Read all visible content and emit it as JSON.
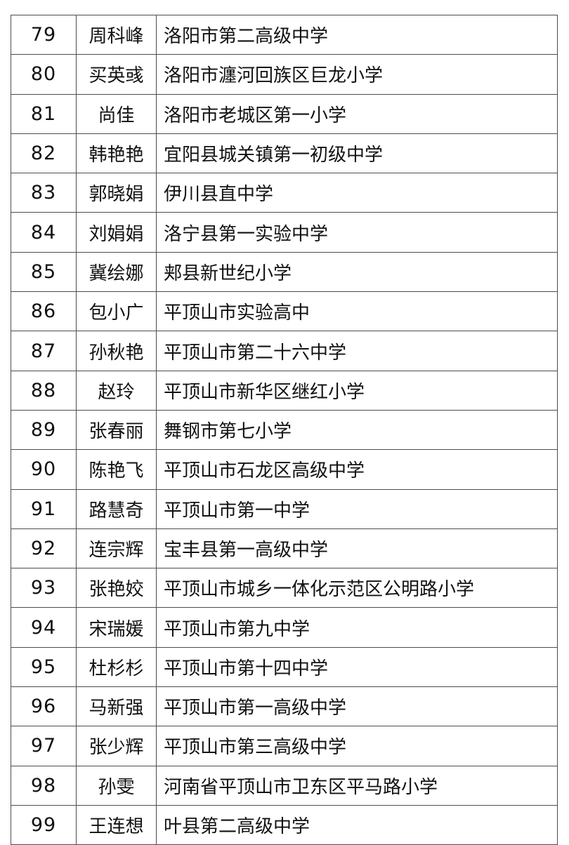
{
  "colors": {
    "background": "#ffffff",
    "border": "#4d4d4d",
    "text": "#111111"
  },
  "table": {
    "rows": [
      {
        "no": "79",
        "name": "周科峰",
        "school": "洛阳市第二高级中学"
      },
      {
        "no": "80",
        "name": "买英彧",
        "school": "洛阳市瀍河回族区巨龙小学"
      },
      {
        "no": "81",
        "name": "尚佳",
        "school": "洛阳市老城区第一小学"
      },
      {
        "no": "82",
        "name": "韩艳艳",
        "school": "宜阳县城关镇第一初级中学"
      },
      {
        "no": "83",
        "name": "郭晓娟",
        "school": "伊川县直中学"
      },
      {
        "no": "84",
        "name": "刘娟娟",
        "school": "洛宁县第一实验中学"
      },
      {
        "no": "85",
        "name": "冀绘娜",
        "school": "郏县新世纪小学"
      },
      {
        "no": "86",
        "name": "包小广",
        "school": "平顶山市实验高中"
      },
      {
        "no": "87",
        "name": "孙秋艳",
        "school": "平顶山市第二十六中学"
      },
      {
        "no": "88",
        "name": "赵玲",
        "school": "平顶山市新华区继红小学"
      },
      {
        "no": "89",
        "name": "张春丽",
        "school": "舞钢市第七小学"
      },
      {
        "no": "90",
        "name": "陈艳飞",
        "school": "平顶山市石龙区高级中学"
      },
      {
        "no": "91",
        "name": "路慧奇",
        "school": "平顶山市第一中学"
      },
      {
        "no": "92",
        "name": "连宗辉",
        "school": "宝丰县第一高级中学"
      },
      {
        "no": "93",
        "name": "张艳姣",
        "school": "平顶山市城乡一体化示范区公明路小学"
      },
      {
        "no": "94",
        "name": "宋瑞媛",
        "school": "平顶山市第九中学"
      },
      {
        "no": "95",
        "name": "杜杉杉",
        "school": "平顶山市第十四中学"
      },
      {
        "no": "96",
        "name": "马新强",
        "school": "平顶山市第一高级中学"
      },
      {
        "no": "97",
        "name": "张少辉",
        "school": "平顶山市第三高级中学"
      },
      {
        "no": "98",
        "name": "孙雯",
        "school": "河南省平顶山市卫东区平马路小学"
      },
      {
        "no": "99",
        "name": "王连想",
        "school": "叶县第二高级中学"
      }
    ]
  }
}
